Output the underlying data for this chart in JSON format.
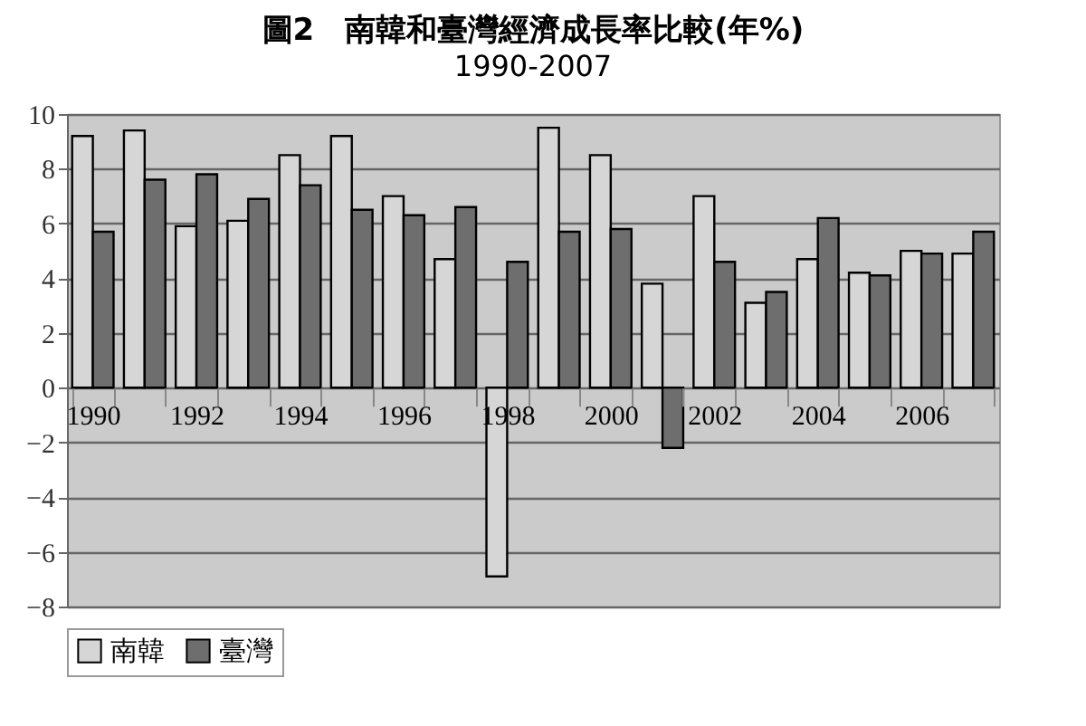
{
  "chart_data": {
    "type": "bar",
    "title": "圖2　南韓和臺灣經濟成長率比較(年%)",
    "subtitle": "1990-2007",
    "categories": [
      "1990",
      null,
      "1992",
      null,
      "1994",
      null,
      "1996",
      null,
      "1998",
      null,
      "2000",
      null,
      "2002",
      null,
      "2004",
      null,
      "2006",
      null
    ],
    "series": [
      {
        "name": "南韓",
        "color": "#d6d6d6",
        "values": [
          9.2,
          9.4,
          5.9,
          6.1,
          8.5,
          9.2,
          7.0,
          4.7,
          -6.9,
          9.5,
          8.5,
          3.8,
          7.0,
          3.1,
          4.7,
          4.2,
          5.0,
          4.9
        ]
      },
      {
        "name": "臺灣",
        "color": "#6e6e6e",
        "values": [
          5.7,
          7.6,
          7.8,
          6.9,
          7.4,
          6.5,
          6.3,
          6.6,
          4.6,
          5.7,
          5.8,
          -2.2,
          4.6,
          3.5,
          6.2,
          4.1,
          4.9,
          5.7
        ]
      }
    ],
    "ylim": [
      -8,
      10
    ],
    "yticks": [
      -8,
      -6,
      -4,
      -2,
      0,
      2,
      4,
      6,
      8,
      10
    ],
    "grid": "y",
    "legend": "bottom"
  }
}
